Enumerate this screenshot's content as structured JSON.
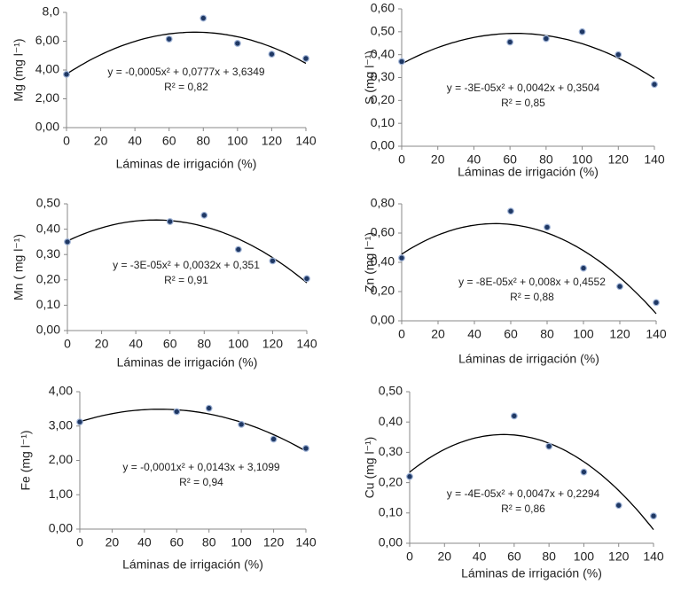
{
  "chart_data": [
    {
      "type": "scatter",
      "ylabel": "Mg (mg l⁻¹)",
      "xlabel": "Láminas de irrigación (%)",
      "x": [
        0,
        60,
        80,
        100,
        120,
        140
      ],
      "values": [
        3.7,
        6.15,
        7.6,
        5.85,
        5.1,
        4.8
      ],
      "xlim": [
        0,
        140
      ],
      "xticks": [
        0,
        20,
        40,
        60,
        80,
        100,
        120,
        140
      ],
      "ylim": [
        0,
        8
      ],
      "yticks": [
        {
          "value": 0,
          "label": "0,00"
        },
        {
          "value": 2,
          "label": "2,00"
        },
        {
          "value": 4,
          "label": "4,00"
        },
        {
          "value": 6,
          "label": "6,00"
        },
        {
          "value": 8,
          "label": "8,0"
        }
      ],
      "equation": "y = -0,0005x² + 0,0777x + 3,6349",
      "r2": "R² = 0,82",
      "color": "#1f3864"
    },
    {
      "type": "scatter",
      "ylabel": "S (mg l⁻¹)",
      "xlabel": "Láminas de irrigación (%)",
      "x": [
        0,
        60,
        80,
        100,
        120,
        140
      ],
      "values": [
        0.37,
        0.455,
        0.47,
        0.5,
        0.4,
        0.27
      ],
      "xlim": [
        0,
        140
      ],
      "xticks": [
        0,
        20,
        40,
        60,
        80,
        100,
        120,
        140
      ],
      "ylim": [
        0,
        0.6
      ],
      "yticks": [
        {
          "value": 0,
          "label": "0,00"
        },
        {
          "value": 0.1,
          "label": "0,10"
        },
        {
          "value": 0.2,
          "label": "0,20"
        },
        {
          "value": 0.3,
          "label": "0,30"
        },
        {
          "value": 0.4,
          "label": "0,40"
        },
        {
          "value": 0.5,
          "label": "0,50"
        },
        {
          "value": 0.6,
          "label": "0,60"
        }
      ],
      "equation": "y = -3E-05x² + 0,0042x + 0,3504",
      "r2": "R² = 0,85",
      "color": "#1f3864"
    },
    {
      "type": "scatter",
      "ylabel": "Mn ( mg l⁻¹)",
      "xlabel": "Láminas de irrigación (%)",
      "x": [
        0,
        60,
        80,
        100,
        120,
        140
      ],
      "values": [
        0.35,
        0.43,
        0.455,
        0.32,
        0.275,
        0.205
      ],
      "xlim": [
        0,
        140
      ],
      "xticks": [
        0,
        20,
        40,
        60,
        80,
        100,
        120,
        140
      ],
      "ylim": [
        0,
        0.5
      ],
      "yticks": [
        {
          "value": 0,
          "label": "0,00"
        },
        {
          "value": 0.1,
          "label": "0,10"
        },
        {
          "value": 0.2,
          "label": "0,20"
        },
        {
          "value": 0.3,
          "label": "0,30"
        },
        {
          "value": 0.4,
          "label": "0,40"
        },
        {
          "value": 0.5,
          "label": "0,50"
        }
      ],
      "equation": "y = -3E-05x² + 0,0032x + 0,351",
      "r2": "R² = 0,91",
      "color": "#1f3864"
    },
    {
      "type": "scatter",
      "ylabel": "Zn (mg l⁻¹)",
      "xlabel": "Láminas de irrigación (%)",
      "x": [
        0,
        60,
        80,
        100,
        120,
        140
      ],
      "values": [
        0.43,
        0.75,
        0.64,
        0.36,
        0.235,
        0.125
      ],
      "xlim": [
        0,
        140
      ],
      "xticks": [
        0,
        20,
        40,
        60,
        80,
        100,
        120,
        140
      ],
      "ylim": [
        0,
        0.8
      ],
      "yticks": [
        {
          "value": 0,
          "label": "0,00"
        },
        {
          "value": 0.2,
          "label": "0,20"
        },
        {
          "value": 0.4,
          "label": "0,40"
        },
        {
          "value": 0.6,
          "label": "0,60"
        },
        {
          "value": 0.8,
          "label": "0,80"
        }
      ],
      "equation": "y = -8E-05x² + 0,008x + 0,4552",
      "r2": "R² = 0,88",
      "color": "#1f3864"
    },
    {
      "type": "scatter",
      "ylabel": "Fe (mg l⁻¹)",
      "xlabel": "Láminas de irrigación (%)",
      "x": [
        0,
        60,
        80,
        100,
        120,
        140
      ],
      "values": [
        3.12,
        3.42,
        3.52,
        3.05,
        2.62,
        2.35
      ],
      "xlim": [
        0,
        140
      ],
      "xticks": [
        0,
        20,
        40,
        60,
        80,
        100,
        120,
        140
      ],
      "ylim": [
        0,
        4
      ],
      "yticks": [
        {
          "value": 0,
          "label": "0,00"
        },
        {
          "value": 1,
          "label": "1,00"
        },
        {
          "value": 2,
          "label": "2,00"
        },
        {
          "value": 3,
          "label": "3,00"
        },
        {
          "value": 4,
          "label": "4,00"
        }
      ],
      "equation": "y = -0,0001x² + 0,0143x + 3,1099",
      "r2": "R² = 0,94",
      "color": "#1f3864"
    },
    {
      "type": "scatter",
      "ylabel": "Cu (mg l⁻¹)",
      "xlabel": "Láminas de irrigación (%)",
      "x": [
        0,
        60,
        80,
        100,
        120,
        140
      ],
      "values": [
        0.22,
        0.42,
        0.32,
        0.235,
        0.125,
        0.09
      ],
      "xlim": [
        0,
        140
      ],
      "xticks": [
        0,
        20,
        40,
        60,
        80,
        100,
        120,
        140
      ],
      "ylim": [
        0,
        0.5
      ],
      "yticks": [
        {
          "value": 0,
          "label": "0,00"
        },
        {
          "value": 0.1,
          "label": "0,10"
        },
        {
          "value": 0.2,
          "label": "0,20"
        },
        {
          "value": 0.3,
          "label": "0,30"
        },
        {
          "value": 0.4,
          "label": "0,40"
        },
        {
          "value": 0.5,
          "label": "0,50"
        }
      ],
      "equation": "y = -4E-05x² + 0,0047x + 0,2294",
      "r2": "R² = 0,86",
      "color": "#1f3864"
    }
  ]
}
